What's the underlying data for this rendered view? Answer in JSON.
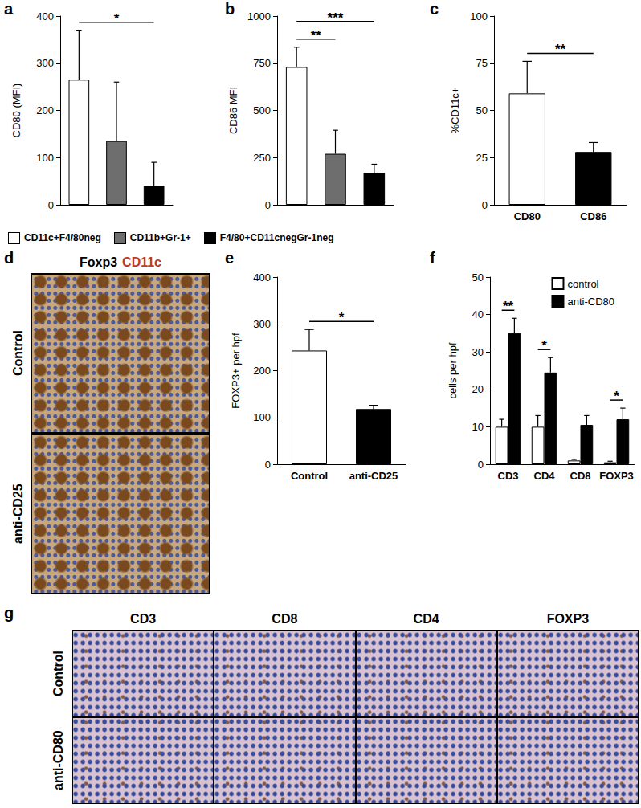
{
  "chart_data": [
    {
      "panel": "a",
      "type": "bar",
      "categories": [
        "CD11c+F4/80neg",
        "CD11b+Gr-1+",
        "F4/80+CD11cnegGr-1neg"
      ],
      "values": [
        265,
        135,
        40
      ],
      "errors": [
        105,
        125,
        50
      ],
      "colors": [
        "#ffffff",
        "#6e6e6e",
        "#000000"
      ],
      "ylabel": "CD80 (MFI)",
      "ylim": [
        0,
        400
      ],
      "yticks": [
        0,
        100,
        200,
        300,
        400
      ],
      "grid": false,
      "tick_labels": "y",
      "legend": "bottom",
      "annotations": [
        {
          "from": "CD11c+F4/80neg",
          "to": "F4/80+CD11cnegGr-1neg",
          "label": "*"
        }
      ]
    },
    {
      "panel": "b",
      "type": "bar",
      "categories": [
        "CD11c+F4/80neg",
        "CD11b+Gr-1+",
        "F4/80+CD11cnegGr-1neg"
      ],
      "values": [
        730,
        270,
        170
      ],
      "errors": [
        105,
        125,
        45
      ],
      "colors": [
        "#ffffff",
        "#6e6e6e",
        "#000000"
      ],
      "ylabel": "CD86 MFI",
      "ylim": [
        0,
        1000
      ],
      "yticks": [
        0,
        250,
        500,
        750,
        1000
      ],
      "grid": false,
      "tick_labels": "y",
      "annotations": [
        {
          "from": "CD11c+F4/80neg",
          "to": "CD11b+Gr-1+",
          "label": "**"
        },
        {
          "from": "CD11c+F4/80neg",
          "to": "F4/80+CD11cnegGr-1neg",
          "label": "***"
        }
      ]
    },
    {
      "panel": "c",
      "type": "bar",
      "categories": [
        "CD80",
        "CD86"
      ],
      "values": [
        59,
        28
      ],
      "errors": [
        17,
        5
      ],
      "colors": [
        "#ffffff",
        "#000000"
      ],
      "ylabel": "%CD11c+",
      "ylim": [
        0,
        100
      ],
      "yticks": [
        0,
        25,
        50,
        75,
        100
      ],
      "grid": false,
      "annotations": [
        {
          "from": "CD80",
          "to": "CD86",
          "label": "**"
        }
      ]
    },
    {
      "panel": "e",
      "type": "bar",
      "categories": [
        "Control",
        "anti-CD25"
      ],
      "values": [
        243,
        118
      ],
      "errors": [
        45,
        8
      ],
      "colors": [
        "#ffffff",
        "#000000"
      ],
      "ylabel": "FOXP3+ per hpf",
      "ylim": [
        0,
        400
      ],
      "yticks": [
        0,
        100,
        200,
        300,
        400
      ],
      "grid": false,
      "annotations": [
        {
          "from": "Control",
          "to": "anti-CD25",
          "label": "*"
        }
      ]
    },
    {
      "panel": "f",
      "type": "bar",
      "categories": [
        "CD3",
        "CD4",
        "CD8",
        "FOXP3"
      ],
      "series": [
        {
          "name": "control",
          "color": "#ffffff",
          "values": [
            10,
            10,
            1,
            0.5
          ],
          "errors": [
            2,
            3,
            0.3,
            0.3
          ]
        },
        {
          "name": "anti-CD80",
          "color": "#000000",
          "values": [
            35,
            24.5,
            10.5,
            12
          ],
          "errors": [
            4,
            4,
            2.5,
            3
          ]
        }
      ],
      "ylabel": "cells per hpf",
      "ylim": [
        0,
        50
      ],
      "yticks": [
        0,
        10,
        20,
        30,
        40,
        50
      ],
      "grid": false,
      "legend": "top-right",
      "annotations": [
        {
          "category": "CD3",
          "label": "**"
        },
        {
          "category": "CD4",
          "label": "*"
        },
        {
          "category": "FOXP3",
          "label": "*"
        }
      ]
    }
  ],
  "image_panels": [
    {
      "panel": "d",
      "title": [
        {
          "text": "Foxp3",
          "color": "#000000"
        },
        {
          "text": "CD11c",
          "color": "#c0392b"
        }
      ],
      "rows": [
        "Control",
        "anti-CD25"
      ]
    },
    {
      "panel": "g",
      "columns": [
        "CD3",
        "CD8",
        "CD4",
        "FOXP3"
      ],
      "rows": [
        "Control",
        "anti-CD80"
      ]
    }
  ]
}
